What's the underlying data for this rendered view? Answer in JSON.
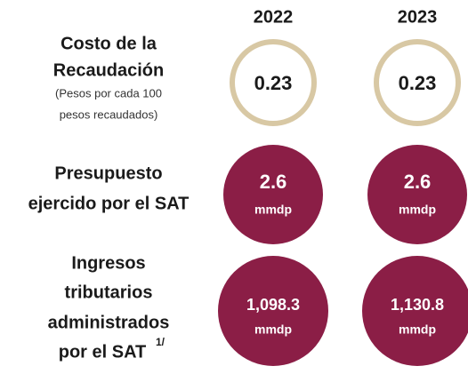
{
  "columns": [
    "2022",
    "2023"
  ],
  "rows": [
    {
      "label_lines": [
        "Costo de la",
        "Recaudación"
      ],
      "sublabel_lines": [
        "(Pesos por cada 100",
        "pesos recaudados)"
      ],
      "values": [
        "0.23",
        "0.23"
      ]
    },
    {
      "label_lines": [
        "Presupuesto",
        "ejercido por el SAT"
      ],
      "values": [
        "2.6",
        "2.6"
      ],
      "unit": "mmdp"
    },
    {
      "label_lines": [
        "Ingresos",
        "tributarios",
        "administrados",
        "por el SAT"
      ],
      "note_ref": "1/",
      "values": [
        "1,098.3",
        "1,130.8"
      ],
      "unit": "mmdp"
    }
  ]
}
